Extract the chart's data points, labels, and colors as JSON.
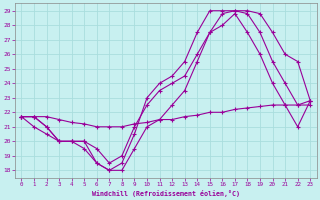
{
  "xlabel": "Windchill (Refroidissement éolien,°C)",
  "bg_color": "#c8f0f0",
  "line_color": "#990099",
  "grid_color": "#aadddd",
  "ylim": [
    17.5,
    29.5
  ],
  "xlim": [
    -0.5,
    23.5
  ],
  "yticks": [
    18,
    19,
    20,
    21,
    22,
    23,
    24,
    25,
    26,
    27,
    28,
    29
  ],
  "xticks": [
    0,
    1,
    2,
    3,
    4,
    5,
    6,
    7,
    8,
    9,
    10,
    11,
    12,
    13,
    14,
    15,
    16,
    17,
    18,
    19,
    20,
    21,
    22,
    23
  ],
  "series": [
    {
      "x": [
        0,
        1,
        2,
        3,
        4,
        5,
        6,
        7,
        8,
        9,
        10,
        11,
        12,
        13,
        14,
        15,
        16,
        17,
        18,
        19,
        20,
        21,
        22,
        23
      ],
      "y": [
        21.7,
        21.7,
        21.0,
        20.0,
        20.0,
        19.5,
        18.5,
        18.0,
        18.5,
        20.5,
        23.0,
        24.0,
        24.5,
        25.5,
        27.5,
        29.0,
        29.0,
        29.0,
        28.8,
        27.5,
        25.5,
        24.0,
        22.5,
        22.5
      ]
    },
    {
      "x": [
        0,
        1,
        2,
        3,
        4,
        5,
        6,
        7,
        8,
        9,
        10,
        11,
        12,
        13,
        14,
        15,
        16,
        17,
        18,
        19,
        20,
        21,
        22,
        23
      ],
      "y": [
        21.7,
        21.7,
        21.0,
        20.0,
        20.0,
        20.0,
        19.5,
        18.5,
        19.0,
        21.0,
        22.5,
        23.5,
        24.0,
        24.5,
        26.0,
        27.5,
        28.0,
        28.8,
        27.5,
        26.0,
        24.0,
        22.5,
        21.0,
        22.8
      ]
    },
    {
      "x": [
        0,
        1,
        2,
        3,
        4,
        5,
        6,
        7,
        8,
        9,
        10,
        11,
        12,
        13,
        14,
        15,
        16,
        17,
        18,
        19,
        20,
        21,
        22,
        23
      ],
      "y": [
        21.7,
        21.0,
        20.5,
        20.0,
        20.0,
        20.0,
        18.5,
        18.0,
        18.0,
        19.5,
        21.0,
        21.5,
        22.5,
        23.5,
        25.5,
        27.5,
        28.8,
        29.0,
        29.0,
        28.8,
        27.5,
        26.0,
        25.5,
        22.8
      ]
    },
    {
      "x": [
        0,
        1,
        2,
        3,
        4,
        5,
        6,
        7,
        8,
        9,
        10,
        11,
        12,
        13,
        14,
        15,
        16,
        17,
        18,
        19,
        20,
        21,
        22,
        23
      ],
      "y": [
        21.7,
        21.7,
        21.7,
        21.5,
        21.3,
        21.2,
        21.0,
        21.0,
        21.0,
        21.2,
        21.3,
        21.5,
        21.5,
        21.7,
        21.8,
        22.0,
        22.0,
        22.2,
        22.3,
        22.4,
        22.5,
        22.5,
        22.5,
        22.8
      ]
    }
  ]
}
